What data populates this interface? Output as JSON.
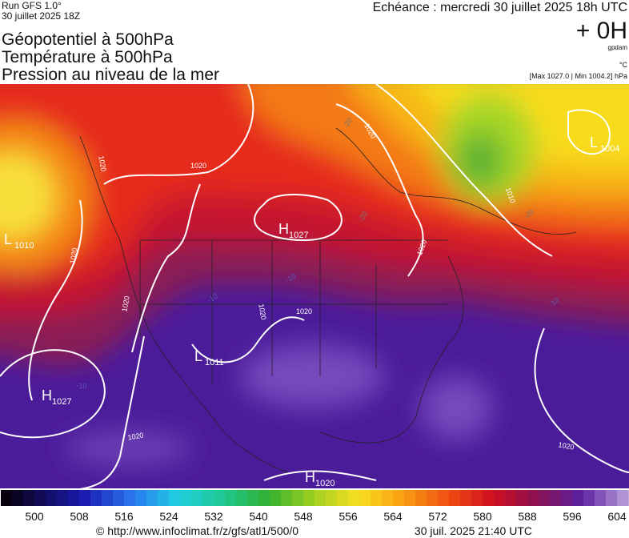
{
  "header": {
    "run": "Run GFS 1.0°",
    "run_date": "30 juillet 2025 18Z",
    "titles": [
      "Géopotentiel à 500hPa",
      "Température à 500hPa",
      "Pression au niveau de la mer"
    ],
    "echeance": "Echéance : mercredi 30 juillet 2025 18h UTC",
    "offset": "+ 0H",
    "unit_gpdam": "gpdam",
    "unit_c": "°C",
    "pressure_range": "[Max 1027.0 | Min 1004.2] hPa"
  },
  "map": {
    "pressure_centers": [
      {
        "letter": "H",
        "value": 1027
      },
      {
        "letter": "L",
        "value": 1010
      },
      {
        "letter": "L",
        "value": 1004
      },
      {
        "letter": "H",
        "value": 1027
      },
      {
        "letter": "L",
        "value": 1011
      },
      {
        "letter": "H",
        "value": 1020
      }
    ],
    "isobar_labels": [
      1020,
      1020,
      1020,
      1020,
      1020,
      1020,
      1020,
      1020,
      1020,
      1010,
      1020
    ],
    "temp_labels": [
      -20,
      -20,
      -20,
      -10,
      -10,
      -10,
      -10
    ]
  },
  "colorbar": {
    "ticks": [
      500,
      508,
      516,
      524,
      532,
      540,
      548,
      556,
      564,
      572,
      580,
      588,
      596,
      604
    ]
  },
  "footer": {
    "source": "© http://www.infoclimat.fr/z/gfs/atl1/500/0",
    "timestamp": "30 juil. 2025 21:40 UTC"
  }
}
